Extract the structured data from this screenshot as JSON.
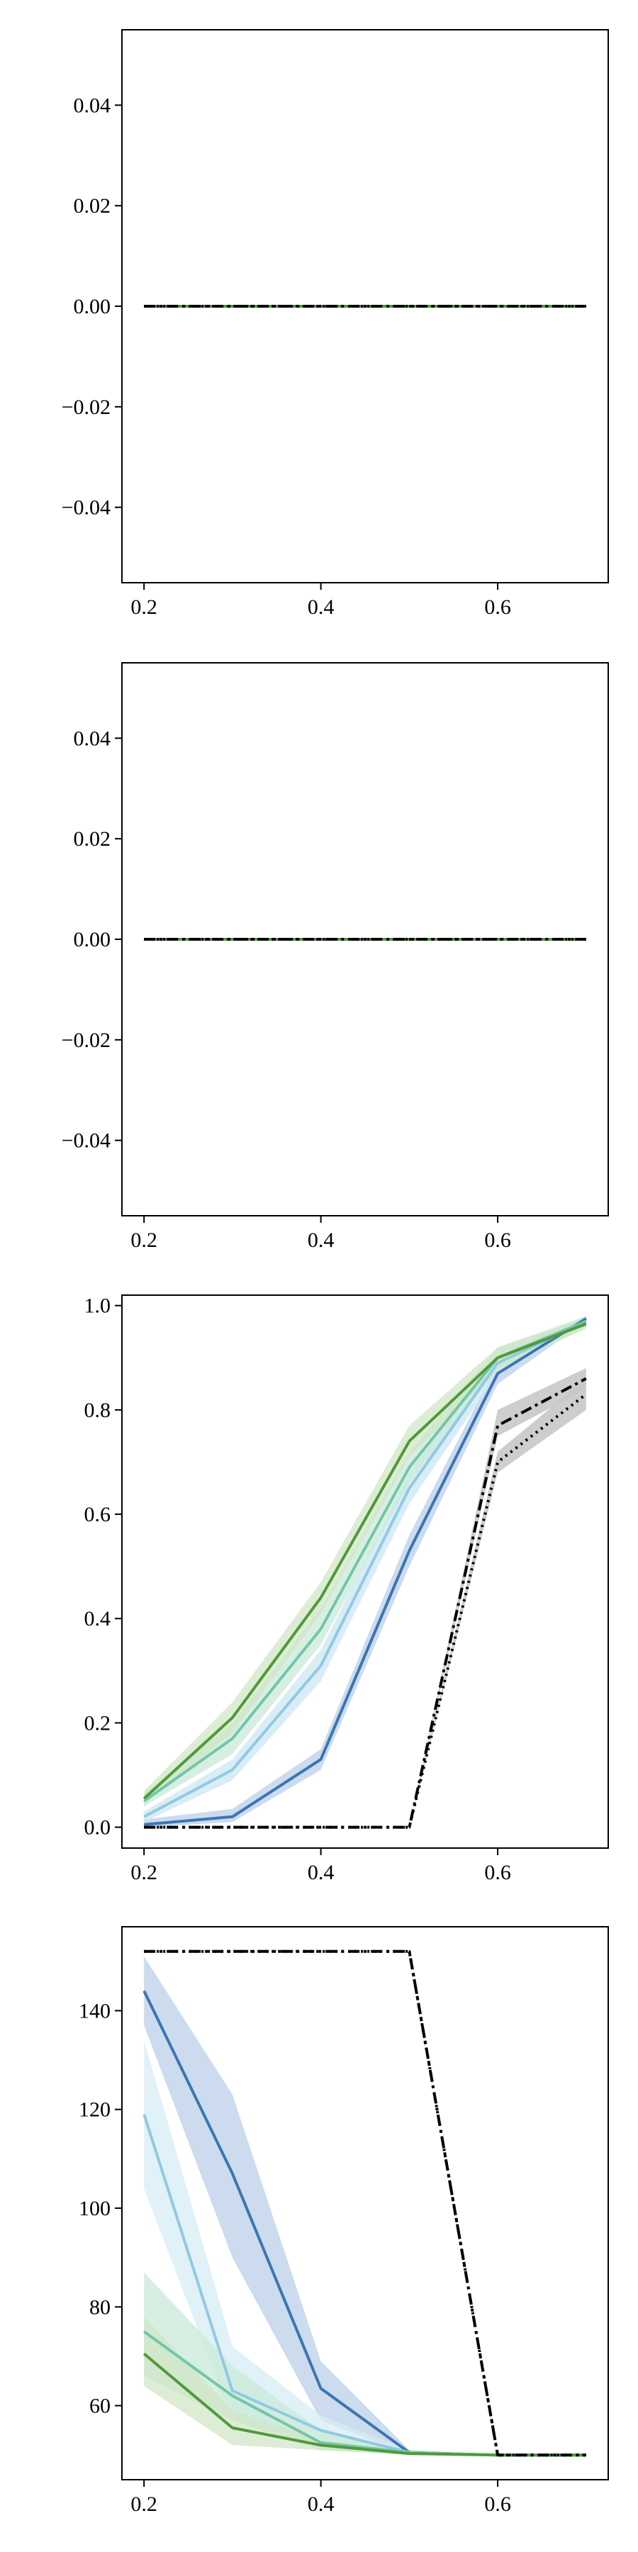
{
  "chart_data": [
    {
      "type": "line",
      "x": [
        0.2,
        0.3,
        0.4,
        0.5,
        0.6,
        0.7
      ],
      "xlim": [
        0.175,
        0.725
      ],
      "ylim": [
        -0.055,
        0.055
      ],
      "xticks": [
        0.2,
        0.4,
        0.6
      ],
      "yticks": [
        -0.04,
        -0.02,
        0.0,
        0.02,
        0.04
      ],
      "xtick_labels": [
        "0.2",
        "0.4",
        "0.6"
      ],
      "ytick_labels": [
        "−0.04",
        "−0.02",
        "0.00",
        "0.02",
        "0.04"
      ],
      "grid": false,
      "series": [
        {
          "color": "#3a76b3",
          "style": "solid",
          "values": [
            0,
            0,
            0,
            0,
            0,
            0
          ],
          "band": null
        },
        {
          "color": "#91c9e3",
          "style": "solid",
          "values": [
            0,
            0,
            0,
            0,
            0,
            0
          ],
          "band": null
        },
        {
          "color": "#72c6a8",
          "style": "solid",
          "values": [
            0,
            0,
            0,
            0,
            0,
            0
          ],
          "band": null
        },
        {
          "color": "#4f9a3a",
          "style": "solid",
          "values": [
            0,
            0,
            0,
            0,
            0,
            0
          ],
          "band": null
        },
        {
          "color": "#000000",
          "style": "dotted",
          "values": [
            0,
            0,
            0,
            0,
            0,
            0
          ],
          "band": null
        },
        {
          "color": "#000000",
          "style": "dashdot",
          "values": [
            0,
            0,
            0,
            0,
            0,
            0
          ],
          "band": null
        }
      ]
    },
    {
      "type": "line",
      "x": [
        0.2,
        0.3,
        0.4,
        0.5,
        0.6,
        0.7
      ],
      "xlim": [
        0.175,
        0.725
      ],
      "ylim": [
        -0.055,
        0.055
      ],
      "xticks": [
        0.2,
        0.4,
        0.6
      ],
      "yticks": [
        -0.04,
        -0.02,
        0.0,
        0.02,
        0.04
      ],
      "xtick_labels": [
        "0.2",
        "0.4",
        "0.6"
      ],
      "ytick_labels": [
        "−0.04",
        "−0.02",
        "0.00",
        "0.02",
        "0.04"
      ],
      "grid": false,
      "series": [
        {
          "color": "#3a76b3",
          "style": "solid",
          "values": [
            0,
            0,
            0,
            0,
            0,
            0
          ],
          "band": null
        },
        {
          "color": "#91c9e3",
          "style": "solid",
          "values": [
            0,
            0,
            0,
            0,
            0,
            0
          ],
          "band": null
        },
        {
          "color": "#72c6a8",
          "style": "solid",
          "values": [
            0,
            0,
            0,
            0,
            0,
            0
          ],
          "band": null
        },
        {
          "color": "#4f9a3a",
          "style": "solid",
          "values": [
            0,
            0,
            0,
            0,
            0,
            0
          ],
          "band": null
        },
        {
          "color": "#000000",
          "style": "dotted",
          "values": [
            0,
            0,
            0,
            0,
            0,
            0
          ],
          "band": null
        },
        {
          "color": "#000000",
          "style": "dashdot",
          "values": [
            0,
            0,
            0,
            0,
            0,
            0
          ],
          "band": null
        }
      ]
    },
    {
      "type": "line",
      "x": [
        0.2,
        0.3,
        0.4,
        0.5,
        0.6,
        0.7
      ],
      "xlim": [
        0.175,
        0.725
      ],
      "ylim": [
        -0.04,
        1.02
      ],
      "xticks": [
        0.2,
        0.4,
        0.6
      ],
      "yticks": [
        0.0,
        0.2,
        0.4,
        0.6,
        0.8,
        1.0
      ],
      "xtick_labels": [
        "0.2",
        "0.4",
        "0.6"
      ],
      "ytick_labels": [
        "0.0",
        "0.2",
        "0.4",
        "0.6",
        "0.8",
        "1.0"
      ],
      "grid": false,
      "series": [
        {
          "color": "#3a76b3",
          "style": "solid",
          "values": [
            0.005,
            0.02,
            0.13,
            0.53,
            0.87,
            0.975
          ],
          "band": {
            "fill": "#c3d5eb",
            "opacity": 0.85,
            "lower": [
              0.0,
              0.01,
              0.11,
              0.5,
              0.85,
              0.97
            ],
            "upper": [
              0.015,
              0.035,
              0.15,
              0.56,
              0.89,
              0.98
            ]
          }
        },
        {
          "color": "#91c9e3",
          "style": "solid",
          "values": [
            0.02,
            0.11,
            0.31,
            0.65,
            0.89,
            0.97
          ],
          "band": {
            "fill": "#cfe8f3",
            "opacity": 0.8,
            "lower": [
              0.01,
              0.09,
              0.28,
              0.62,
              0.87,
              0.96
            ],
            "upper": [
              0.03,
              0.13,
              0.34,
              0.68,
              0.91,
              0.98
            ]
          }
        },
        {
          "color": "#72c6a8",
          "style": "solid",
          "values": [
            0.05,
            0.17,
            0.38,
            0.69,
            0.9,
            0.97
          ],
          "band": {
            "fill": "#c9ead9",
            "opacity": 0.75,
            "lower": [
              0.04,
              0.14,
              0.35,
              0.66,
              0.88,
              0.96
            ],
            "upper": [
              0.065,
              0.2,
              0.42,
              0.72,
              0.92,
              0.98
            ]
          }
        },
        {
          "color": "#4f9a3a",
          "style": "solid",
          "values": [
            0.055,
            0.21,
            0.44,
            0.74,
            0.9,
            0.965
          ],
          "band": {
            "fill": "#cfe6c3",
            "opacity": 0.7,
            "lower": [
              0.045,
              0.18,
              0.41,
              0.71,
              0.88,
              0.955
            ],
            "upper": [
              0.07,
              0.24,
              0.47,
              0.77,
              0.92,
              0.975
            ]
          }
        },
        {
          "color": "#000000",
          "style": "dotted",
          "values": [
            0.0,
            0.0,
            0.0,
            0.0,
            0.7,
            0.83
          ],
          "band": {
            "fill": "#c8c8c8",
            "opacity": 0.9,
            "lower": [
              0.0,
              0.0,
              0.0,
              0.0,
              0.68,
              0.8
            ],
            "upper": [
              0.0,
              0.0,
              0.0,
              0.0,
              0.72,
              0.86
            ]
          }
        },
        {
          "color": "#000000",
          "style": "dashdot",
          "values": [
            0.0,
            0.0,
            0.0,
            0.0,
            0.77,
            0.86
          ],
          "band": {
            "fill": "#c8c8c8",
            "opacity": 0.9,
            "lower": [
              0.0,
              0.0,
              0.0,
              0.0,
              0.75,
              0.84
            ],
            "upper": [
              0.0,
              0.0,
              0.0,
              0.0,
              0.8,
              0.88
            ]
          }
        }
      ]
    },
    {
      "type": "line",
      "x": [
        0.2,
        0.3,
        0.4,
        0.5,
        0.6,
        0.7
      ],
      "xlim": [
        0.175,
        0.725
      ],
      "ylim": [
        45.0,
        157.0
      ],
      "xticks": [
        0.2,
        0.4,
        0.6
      ],
      "yticks": [
        60,
        80,
        100,
        120,
        140
      ],
      "xtick_labels": [
        "0.2",
        "0.4",
        "0.6"
      ],
      "ytick_labels": [
        "60",
        "80",
        "100",
        "120",
        "140"
      ],
      "grid": false,
      "series": [
        {
          "color": "#3a76b3",
          "style": "solid",
          "values": [
            144.0,
            107.0,
            63.5,
            50.5,
            50.0,
            50.0
          ],
          "band": {
            "fill": "#c3d5eb",
            "opacity": 0.85,
            "lower": [
              137.0,
              90.0,
              57.0,
              50.0,
              50.0,
              50.0
            ],
            "upper": [
              151.0,
              123.0,
              69.0,
              51.0,
              50.0,
              50.0
            ]
          }
        },
        {
          "color": "#91c9e3",
          "style": "solid",
          "values": [
            119.0,
            63.0,
            55.0,
            50.5,
            50.0,
            50.0
          ],
          "band": {
            "fill": "#d7ecf5",
            "opacity": 0.75,
            "lower": [
              104.0,
              57.0,
              52.0,
              50.0,
              50.0,
              50.0
            ],
            "upper": [
              134.0,
              72.0,
              58.0,
              51.0,
              50.0,
              50.0
            ]
          }
        },
        {
          "color": "#72c6a8",
          "style": "solid",
          "values": [
            75.0,
            62.0,
            52.5,
            50.5,
            50.0,
            50.0
          ],
          "band": {
            "fill": "#c9ead9",
            "opacity": 0.75,
            "lower": [
              66.0,
              57.0,
              51.0,
              50.0,
              50.0,
              50.0
            ],
            "upper": [
              87.0,
              68.0,
              55.0,
              51.0,
              50.0,
              50.0
            ]
          }
        },
        {
          "color": "#4f9a3a",
          "style": "solid",
          "values": [
            70.5,
            55.5,
            52.0,
            50.3,
            50.0,
            50.0
          ],
          "band": {
            "fill": "#cfe6c3",
            "opacity": 0.7,
            "lower": [
              64.0,
              52.0,
              51.0,
              50.0,
              50.0,
              50.0
            ],
            "upper": [
              78.0,
              59.0,
              53.0,
              51.0,
              50.0,
              50.0
            ]
          }
        },
        {
          "color": "#000000",
          "style": "dotted",
          "values": [
            152.0,
            152.0,
            152.0,
            152.0,
            50.0,
            50.0
          ],
          "band": null
        },
        {
          "color": "#000000",
          "style": "dashdot",
          "values": [
            152.0,
            152.0,
            152.0,
            152.0,
            50.0,
            50.0
          ],
          "band": null
        }
      ]
    }
  ]
}
